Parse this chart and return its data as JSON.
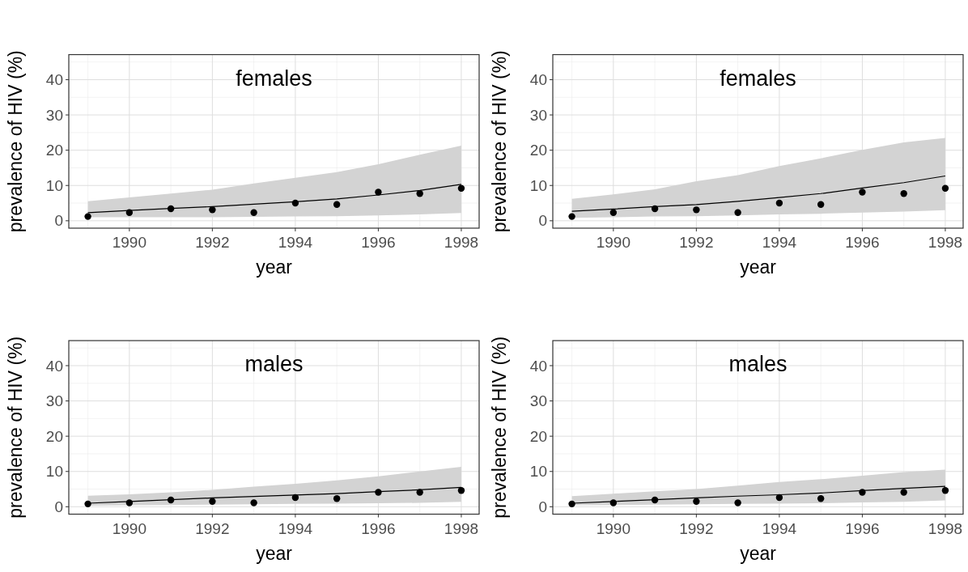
{
  "chart_data": [
    {
      "type": "line",
      "title": "females",
      "xlabel": "year",
      "ylabel": "prevalence of HIV (%)",
      "xlim": [
        1988.54,
        1998.43
      ],
      "ylim": [
        -2.1,
        47.1
      ],
      "xticks": [
        1990,
        1992,
        1994,
        1996,
        1998
      ],
      "yticks": [
        0,
        10,
        20,
        30,
        40
      ],
      "grid": true,
      "line_style": "solid",
      "x": [
        1989,
        1990,
        1991,
        1992,
        1993,
        1994,
        1995,
        1996,
        1997,
        1998
      ],
      "series": [
        {
          "type": "line",
          "color": "#000000",
          "values": [
            2.3,
            2.9,
            3.5,
            4.0,
            4.7,
            5.4,
            6.2,
            7.3,
            8.6,
            10.3
          ],
          "lower": [
            1.0,
            1.0,
            1.0,
            1.0,
            1.1,
            1.2,
            1.3,
            1.5,
            1.8,
            2.2
          ],
          "upper": [
            5.5,
            6.6,
            7.7,
            8.8,
            10.6,
            12.2,
            13.8,
            16.0,
            18.7,
            21.3
          ]
        },
        {
          "type": "scatter",
          "color": "#000000",
          "marker": "circle",
          "values": [
            1.2,
            2.3,
            3.4,
            3.1,
            2.3,
            5.0,
            4.6,
            8.1,
            7.7,
            9.2
          ]
        }
      ]
    },
    {
      "type": "line",
      "title": "females",
      "xlabel": "year",
      "ylabel": "prevalence of HIV (%)",
      "xlim": [
        1988.54,
        1998.43
      ],
      "ylim": [
        -2.1,
        47.1
      ],
      "xticks": [
        1990,
        1992,
        1994,
        1996,
        1998
      ],
      "yticks": [
        0,
        10,
        20,
        30,
        40
      ],
      "grid": true,
      "line_style": "solid",
      "x": [
        1989,
        1990,
        1991,
        1992,
        1993,
        1994,
        1995,
        1996,
        1997,
        1998
      ],
      "series": [
        {
          "type": "line",
          "color": "#000000",
          "values": [
            2.7,
            3.3,
            4.0,
            4.6,
            5.5,
            6.6,
            7.7,
            9.3,
            10.8,
            12.7
          ],
          "lower": [
            0.8,
            1.0,
            1.2,
            1.3,
            1.5,
            1.8,
            2.0,
            2.3,
            2.6,
            3.0
          ],
          "upper": [
            6.2,
            7.5,
            8.9,
            11.2,
            12.9,
            15.5,
            17.7,
            20.1,
            22.2,
            23.5
          ]
        },
        {
          "type": "scatter",
          "color": "#000000",
          "marker": "circle",
          "values": [
            1.2,
            2.3,
            3.4,
            3.1,
            2.3,
            5.0,
            4.6,
            8.1,
            7.7,
            9.2
          ]
        }
      ]
    },
    {
      "type": "line",
      "title": "males",
      "xlabel": "year",
      "ylabel": "prevalence of HIV (%)",
      "xlim": [
        1988.54,
        1998.43
      ],
      "ylim": [
        -2.1,
        47.1
      ],
      "xticks": [
        1990,
        1992,
        1994,
        1996,
        1998
      ],
      "yticks": [
        0,
        10,
        20,
        30,
        40
      ],
      "grid": true,
      "line_style": "solid",
      "x": [
        1989,
        1990,
        1991,
        1992,
        1993,
        1994,
        1995,
        1996,
        1997,
        1998
      ],
      "series": [
        {
          "type": "line",
          "color": "#000000",
          "values": [
            1.0,
            1.5,
            2.0,
            2.5,
            2.9,
            3.3,
            3.7,
            4.3,
            4.8,
            5.5
          ],
          "lower": [
            0.3,
            0.4,
            0.5,
            0.6,
            0.7,
            0.8,
            0.9,
            1.0,
            1.1,
            1.4
          ],
          "upper": [
            3.1,
            3.5,
            4.1,
            4.8,
            5.7,
            6.5,
            7.5,
            8.6,
            10.0,
            11.3
          ]
        },
        {
          "type": "scatter",
          "color": "#000000",
          "marker": "circle",
          "values": [
            0.8,
            1.1,
            1.9,
            1.5,
            1.1,
            2.6,
            2.3,
            4.1,
            4.1,
            4.6
          ]
        }
      ]
    },
    {
      "type": "line",
      "title": "males",
      "xlabel": "year",
      "ylabel": "prevalence of HIV (%)",
      "xlim": [
        1988.54,
        1998.43
      ],
      "ylim": [
        -2.1,
        47.1
      ],
      "xticks": [
        1990,
        1992,
        1994,
        1996,
        1998
      ],
      "yticks": [
        0,
        10,
        20,
        30,
        40
      ],
      "grid": true,
      "line_style": "solid",
      "x": [
        1989,
        1990,
        1991,
        1992,
        1993,
        1994,
        1995,
        1996,
        1997,
        1998
      ],
      "series": [
        {
          "type": "line",
          "color": "#000000",
          "values": [
            1.0,
            1.5,
            2.0,
            2.5,
            3.0,
            3.4,
            3.9,
            4.6,
            5.2,
            5.8
          ],
          "lower": [
            0.4,
            0.5,
            0.6,
            0.7,
            0.8,
            0.9,
            1.0,
            1.2,
            1.4,
            1.8
          ],
          "upper": [
            3.0,
            3.7,
            4.4,
            5.0,
            6.0,
            7.0,
            7.8,
            8.8,
            9.8,
            10.5
          ]
        },
        {
          "type": "scatter",
          "color": "#000000",
          "marker": "circle",
          "values": [
            0.8,
            1.1,
            1.9,
            1.5,
            1.1,
            2.6,
            2.3,
            4.1,
            4.1,
            4.6
          ]
        }
      ]
    }
  ]
}
